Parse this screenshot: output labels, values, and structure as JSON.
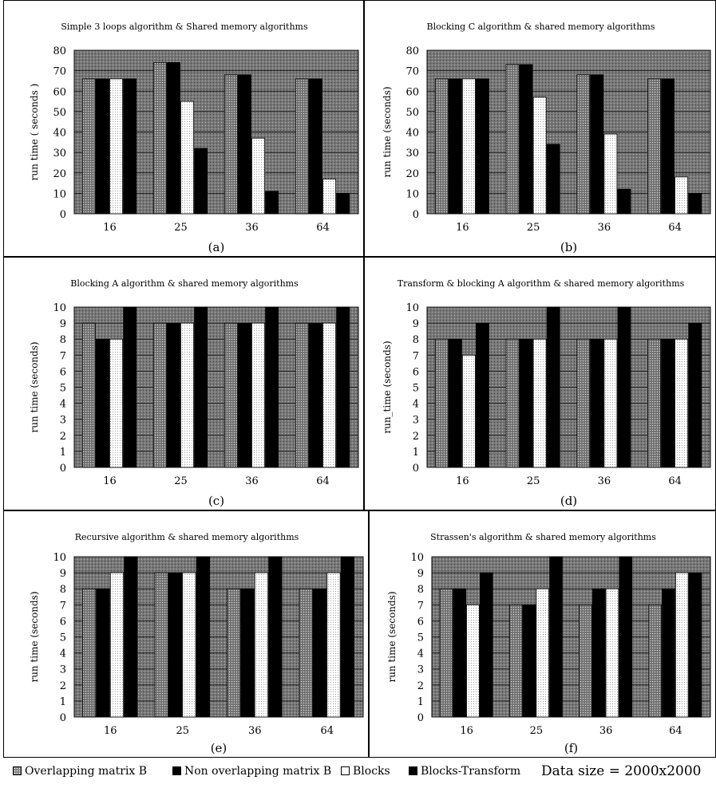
{
  "legend": {
    "items": [
      "Overlapping matrix B",
      "Non overlapping  matrix B",
      "Blocks",
      "Blocks-Transform"
    ],
    "data_size": "Data size = 2000x2000"
  },
  "colors": {
    "overlapping": "#8a8a8a",
    "non_overlapping": "#000000",
    "blocks": "#ffffff",
    "blocks_transform": "#000000",
    "plot_background": "#6e6e6e"
  },
  "chart_data": [
    {
      "type": "bar",
      "title": "Simple 3 loops algorithm & Shared memory algorithms",
      "panel_label": "(a)",
      "ylabel": "run time ( seconds )",
      "ylim": [
        0,
        80
      ],
      "yticks": [
        0,
        10,
        20,
        30,
        40,
        50,
        60,
        70,
        80
      ],
      "categories": [
        "16",
        "25",
        "36",
        "64"
      ],
      "series": [
        {
          "name": "Overlapping matrix B",
          "values": [
            66,
            74,
            68,
            66
          ]
        },
        {
          "name": "Non overlapping  matrix B",
          "values": [
            66,
            74,
            68,
            66
          ]
        },
        {
          "name": "Blocks",
          "values": [
            66,
            55,
            37,
            17
          ]
        },
        {
          "name": "Blocks-Transform",
          "values": [
            66,
            32,
            11,
            10
          ]
        }
      ]
    },
    {
      "type": "bar",
      "title": "Blocking C algorithm & shared memory algorithms",
      "panel_label": "(b)",
      "ylabel": "run time (seconds)",
      "ylim": [
        0,
        80
      ],
      "yticks": [
        0,
        10,
        20,
        30,
        40,
        50,
        60,
        70,
        80
      ],
      "categories": [
        "16",
        "25",
        "36",
        "64"
      ],
      "series": [
        {
          "name": "Overlapping matrix B",
          "values": [
            66,
            73,
            68,
            66
          ]
        },
        {
          "name": "Non overlapping  matrix B",
          "values": [
            66,
            73,
            68,
            66
          ]
        },
        {
          "name": "Blocks",
          "values": [
            66,
            57,
            39,
            18
          ]
        },
        {
          "name": "Blocks-Transform",
          "values": [
            66,
            34,
            12,
            10
          ]
        }
      ]
    },
    {
      "type": "bar",
      "title": "Blocking A algorithm & shared memory algorithms",
      "panel_label": "(c)",
      "ylabel": "run time (seconds)",
      "ylim": [
        0,
        10
      ],
      "yticks": [
        0,
        1,
        2,
        3,
        4,
        5,
        6,
        7,
        8,
        9,
        10
      ],
      "categories": [
        "16",
        "25",
        "36",
        "64"
      ],
      "series": [
        {
          "name": "Overlapping matrix B",
          "values": [
            9,
            9,
            9,
            9
          ]
        },
        {
          "name": "Non overlapping  matrix B",
          "values": [
            8,
            9,
            9,
            9
          ]
        },
        {
          "name": "Blocks",
          "values": [
            8,
            9,
            9,
            9
          ]
        },
        {
          "name": "Blocks-Transform",
          "values": [
            10,
            10,
            10,
            10
          ]
        }
      ]
    },
    {
      "type": "bar",
      "title": "Transform & blocking A algorithm & shared memory algorithms",
      "panel_label": "(d)",
      "ylabel": "run_time (seconds)",
      "ylim": [
        0,
        10
      ],
      "yticks": [
        0,
        1,
        2,
        3,
        4,
        5,
        6,
        7,
        8,
        9,
        10
      ],
      "categories": [
        "16",
        "25",
        "36",
        "64"
      ],
      "series": [
        {
          "name": "Overlapping matrix B",
          "values": [
            8,
            8,
            8,
            8
          ]
        },
        {
          "name": "Non overlapping  matrix B",
          "values": [
            8,
            8,
            8,
            8
          ]
        },
        {
          "name": "Blocks",
          "values": [
            7,
            8,
            8,
            8
          ]
        },
        {
          "name": "Blocks-Transform",
          "values": [
            9,
            10,
            10,
            9
          ]
        }
      ]
    },
    {
      "type": "bar",
      "title": "Recursive algorithm & shared memory algorithms",
      "panel_label": "(e)",
      "ylabel": "run time (seconds)",
      "ylim": [
        0,
        10
      ],
      "yticks": [
        0,
        1,
        2,
        3,
        4,
        5,
        6,
        7,
        8,
        9,
        10
      ],
      "categories": [
        "16",
        "25",
        "36",
        "64"
      ],
      "series": [
        {
          "name": "Overlapping matrix B",
          "values": [
            8,
            9,
            8,
            8
          ]
        },
        {
          "name": "Non overlapping  matrix B",
          "values": [
            8,
            9,
            8,
            8
          ]
        },
        {
          "name": "Blocks",
          "values": [
            9,
            9,
            9,
            9
          ]
        },
        {
          "name": "Blocks-Transform",
          "values": [
            10,
            10,
            10,
            10
          ]
        }
      ]
    },
    {
      "type": "bar",
      "title": "Strassen's algorithm & shared memory algorithms",
      "panel_label": "(f)",
      "ylabel": "run time (seconds)",
      "ylim": [
        0,
        10
      ],
      "yticks": [
        0,
        1,
        2,
        3,
        4,
        5,
        6,
        7,
        8,
        9,
        10
      ],
      "categories": [
        "16",
        "25",
        "36",
        "64"
      ],
      "series": [
        {
          "name": "Overlapping matrix B",
          "values": [
            8,
            7,
            7,
            7
          ]
        },
        {
          "name": "Non overlapping  matrix B",
          "values": [
            8,
            7,
            8,
            8
          ]
        },
        {
          "name": "Blocks",
          "values": [
            7,
            8,
            8,
            9
          ]
        },
        {
          "name": "Blocks-Transform",
          "values": [
            9,
            10,
            10,
            9
          ]
        }
      ]
    }
  ]
}
